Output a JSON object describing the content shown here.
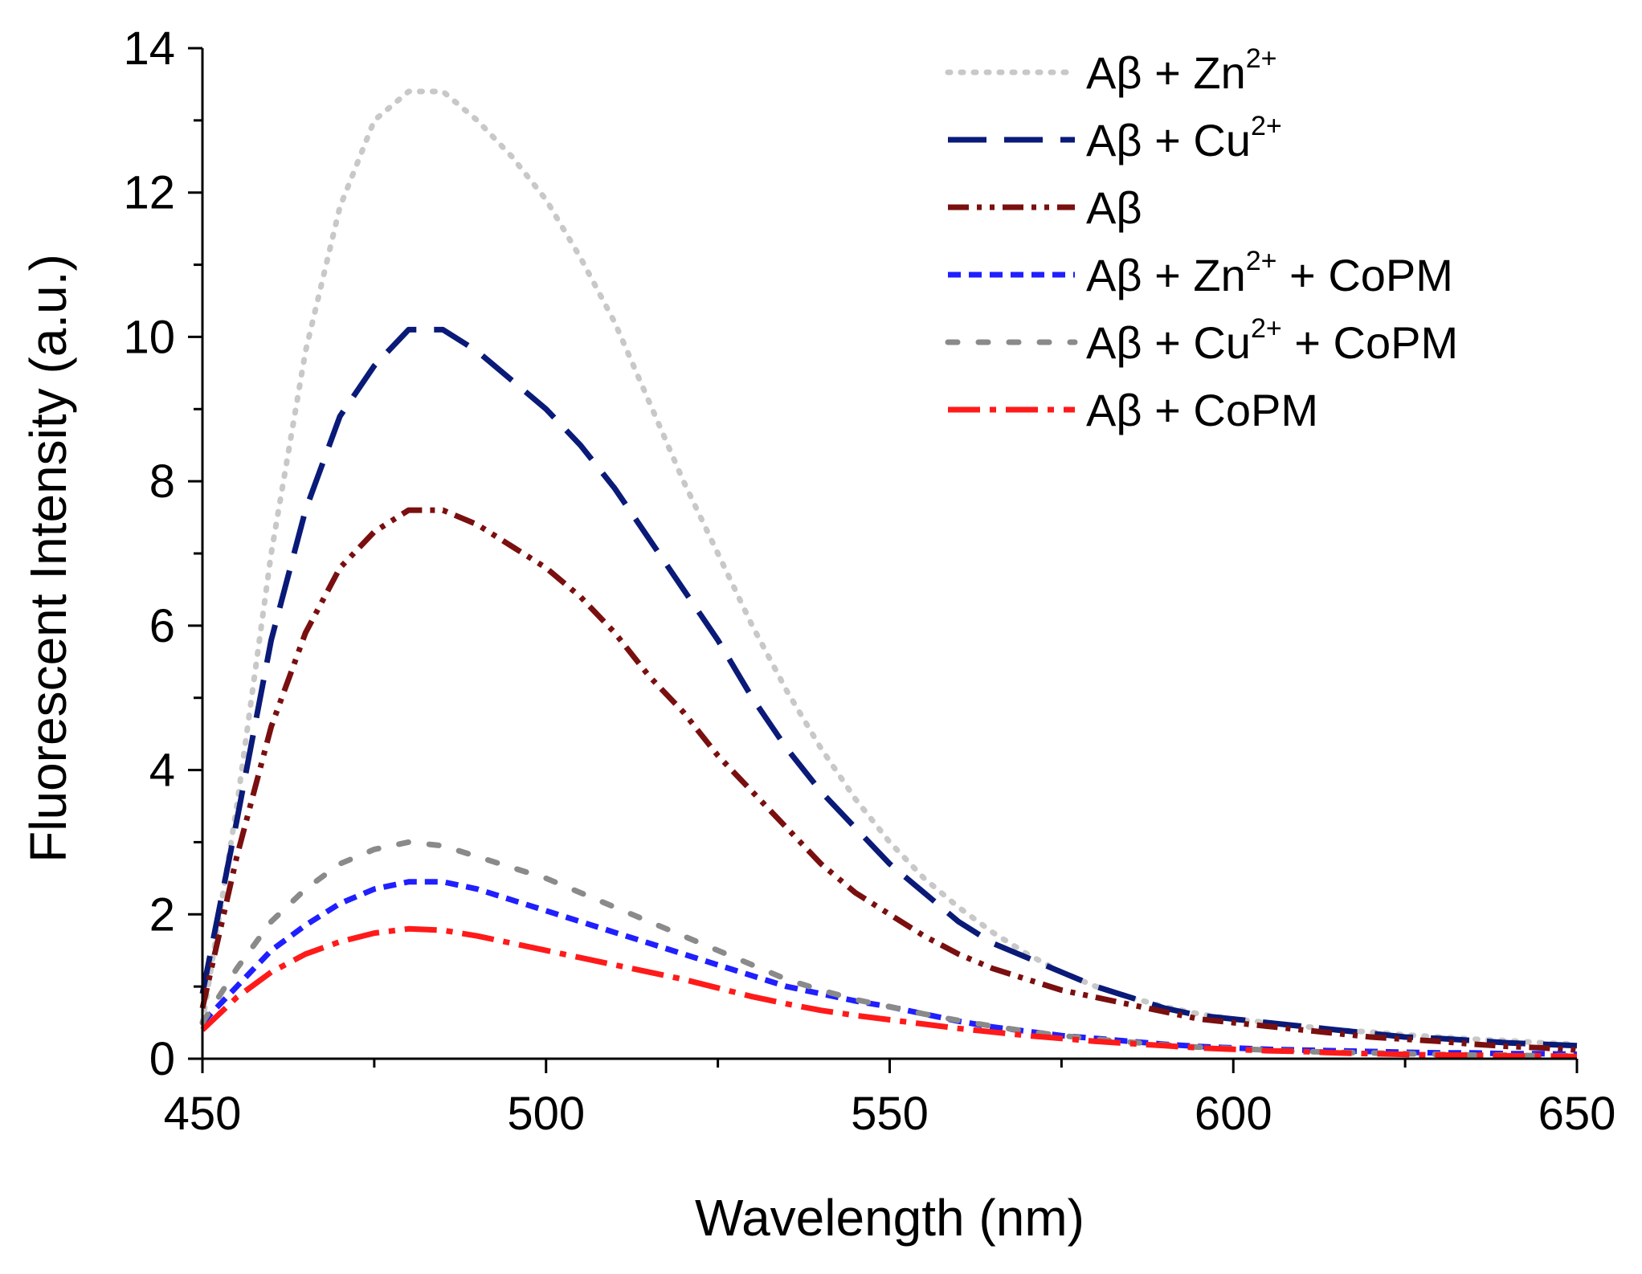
{
  "chart_data": {
    "type": "line",
    "title": "",
    "xlabel": "Wavelength (nm)",
    "ylabel": "Fluorescent Intensity (a.u.)",
    "xlim": [
      450,
      650
    ],
    "ylim": [
      0,
      14
    ],
    "xticks": [
      450,
      500,
      550,
      600,
      650
    ],
    "yticks": [
      0,
      2,
      4,
      6,
      8,
      10,
      12,
      14
    ],
    "grid": false,
    "legend_position": "top-right",
    "x": [
      450,
      455,
      460,
      465,
      470,
      475,
      480,
      485,
      490,
      495,
      500,
      505,
      510,
      515,
      520,
      525,
      530,
      535,
      540,
      545,
      550,
      555,
      560,
      565,
      570,
      575,
      580,
      585,
      590,
      595,
      600,
      605,
      610,
      615,
      620,
      625,
      630,
      635,
      640,
      645,
      650
    ],
    "series": [
      {
        "name": "Aβ + Zn2+",
        "label_parts": [
          "Aβ + Zn",
          "2+",
          ""
        ],
        "color": "#c8c8c8",
        "dash": "3 13",
        "values": [
          0.5,
          3.5,
          7.0,
          9.8,
          11.8,
          13.0,
          13.4,
          13.4,
          13.0,
          12.5,
          11.9,
          11.1,
          10.2,
          9.1,
          8.0,
          7.0,
          6.0,
          5.1,
          4.3,
          3.6,
          3.0,
          2.5,
          2.1,
          1.75,
          1.45,
          1.2,
          1.0,
          0.85,
          0.72,
          0.62,
          0.55,
          0.5,
          0.45,
          0.4,
          0.37,
          0.33,
          0.3,
          0.27,
          0.25,
          0.22,
          0.2
        ]
      },
      {
        "name": "Aβ + Cu2+",
        "label_parts": [
          "Aβ + Cu",
          "2+",
          ""
        ],
        "color": "#0a1a78",
        "dash": "48 22",
        "values": [
          0.9,
          3.3,
          5.8,
          7.6,
          8.9,
          9.6,
          10.1,
          10.1,
          9.8,
          9.4,
          9.0,
          8.5,
          7.9,
          7.2,
          6.5,
          5.8,
          5.0,
          4.3,
          3.7,
          3.2,
          2.7,
          2.3,
          1.9,
          1.6,
          1.4,
          1.2,
          1.0,
          0.85,
          0.7,
          0.6,
          0.55,
          0.5,
          0.45,
          0.4,
          0.35,
          0.3,
          0.28,
          0.25,
          0.22,
          0.2,
          0.18
        ]
      },
      {
        "name": "Aβ",
        "label_parts": [
          "Aβ",
          "",
          ""
        ],
        "color": "#7a0f0f",
        "dash": "26 10 6 10 6 10",
        "values": [
          0.7,
          2.8,
          4.6,
          5.9,
          6.8,
          7.3,
          7.6,
          7.6,
          7.4,
          7.1,
          6.8,
          6.4,
          5.9,
          5.3,
          4.8,
          4.2,
          3.7,
          3.2,
          2.7,
          2.3,
          2.0,
          1.7,
          1.45,
          1.25,
          1.1,
          0.95,
          0.85,
          0.75,
          0.65,
          0.55,
          0.5,
          0.45,
          0.4,
          0.35,
          0.3,
          0.27,
          0.24,
          0.2,
          0.17,
          0.15,
          0.12
        ]
      },
      {
        "name": "Aβ + Zn2+ + CoPM",
        "label_parts": [
          "Aβ + Zn",
          "2+",
          "+ CoPM"
        ],
        "color": "#1f1fff",
        "dash": "16 10",
        "values": [
          0.5,
          1.0,
          1.5,
          1.85,
          2.15,
          2.35,
          2.45,
          2.45,
          2.35,
          2.2,
          2.05,
          1.9,
          1.75,
          1.6,
          1.45,
          1.3,
          1.15,
          1.0,
          0.9,
          0.8,
          0.72,
          0.62,
          0.52,
          0.44,
          0.38,
          0.32,
          0.28,
          0.24,
          0.2,
          0.17,
          0.15,
          0.13,
          0.12,
          0.11,
          0.1,
          0.09,
          0.08,
          0.08,
          0.07,
          0.07,
          0.06
        ]
      },
      {
        "name": "Aβ + Cu2+ + CoPM",
        "label_parts": [
          "Aβ + Cu",
          "2+",
          "+ CoPM"
        ],
        "color": "#8a8a8a",
        "dash": "12 26",
        "values": [
          0.5,
          1.25,
          1.9,
          2.35,
          2.7,
          2.9,
          3.0,
          2.95,
          2.8,
          2.65,
          2.5,
          2.3,
          2.1,
          1.9,
          1.7,
          1.5,
          1.3,
          1.1,
          0.95,
          0.82,
          0.72,
          0.62,
          0.53,
          0.45,
          0.38,
          0.32,
          0.27,
          0.23,
          0.19,
          0.16,
          0.14,
          0.12,
          0.1,
          0.09,
          0.08,
          0.07,
          0.06,
          0.05,
          0.05,
          0.04,
          0.04
        ]
      },
      {
        "name": "Aβ + CoPM",
        "label_parts": [
          "Aβ + CoPM",
          "",
          ""
        ],
        "color": "#ff1a1a",
        "dash": "40 12 8 12",
        "values": [
          0.4,
          0.85,
          1.2,
          1.45,
          1.62,
          1.74,
          1.8,
          1.78,
          1.7,
          1.6,
          1.5,
          1.4,
          1.3,
          1.2,
          1.1,
          0.98,
          0.86,
          0.76,
          0.67,
          0.6,
          0.54,
          0.48,
          0.42,
          0.37,
          0.32,
          0.28,
          0.24,
          0.21,
          0.18,
          0.15,
          0.13,
          0.11,
          0.1,
          0.08,
          0.07,
          0.06,
          0.05,
          0.05,
          0.04,
          0.04,
          0.03
        ]
      }
    ]
  }
}
